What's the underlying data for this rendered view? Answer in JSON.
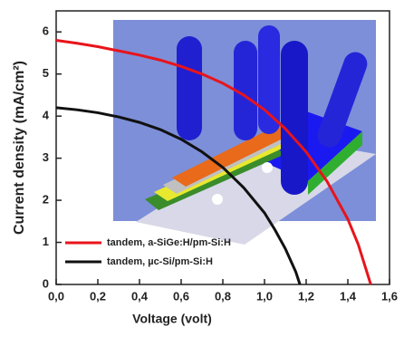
{
  "chart_data": {
    "type": "line",
    "xlabel": "Voltage (volt)",
    "ylabel": "Current density (mA/cm²)",
    "xlim": [
      0,
      1.6
    ],
    "ylim": [
      0,
      6.5
    ],
    "xticks": [
      {
        "value": 0,
        "label": "0,0"
      },
      {
        "value": 0.2,
        "label": "0,2"
      },
      {
        "value": 0.4,
        "label": "0,4"
      },
      {
        "value": 0.6,
        "label": "0,6"
      },
      {
        "value": 0.8,
        "label": "0,8"
      },
      {
        "value": 1.0,
        "label": "1,0"
      },
      {
        "value": 1.2,
        "label": "1,2"
      },
      {
        "value": 1.4,
        "label": "1,4"
      },
      {
        "value": 1.6,
        "label": "1,6"
      }
    ],
    "yticks": [
      0,
      1,
      2,
      3,
      4,
      5,
      6
    ],
    "series": [
      {
        "name": "tandem, a-SiGe:H/pm-Si:H",
        "color": "#e8141b",
        "x": [
          0,
          0.1,
          0.2,
          0.3,
          0.4,
          0.5,
          0.6,
          0.7,
          0.8,
          0.9,
          1.0,
          1.1,
          1.2,
          1.3,
          1.4,
          1.45,
          1.51
        ],
        "values": [
          5.8,
          5.73,
          5.65,
          5.55,
          5.45,
          5.33,
          5.18,
          5.0,
          4.78,
          4.5,
          4.15,
          3.7,
          3.15,
          2.45,
          1.55,
          0.95,
          0
        ]
      },
      {
        "name": "tandem, µc-Si/pm-Si:H",
        "color": "#111111",
        "x": [
          0,
          0.1,
          0.2,
          0.3,
          0.4,
          0.5,
          0.6,
          0.7,
          0.8,
          0.9,
          1.0,
          1.05,
          1.1,
          1.15,
          1.17
        ],
        "values": [
          4.2,
          4.15,
          4.08,
          3.98,
          3.85,
          3.68,
          3.45,
          3.15,
          2.78,
          2.3,
          1.7,
          1.3,
          0.85,
          0.3,
          0
        ]
      }
    ],
    "legend": "lower left"
  }
}
